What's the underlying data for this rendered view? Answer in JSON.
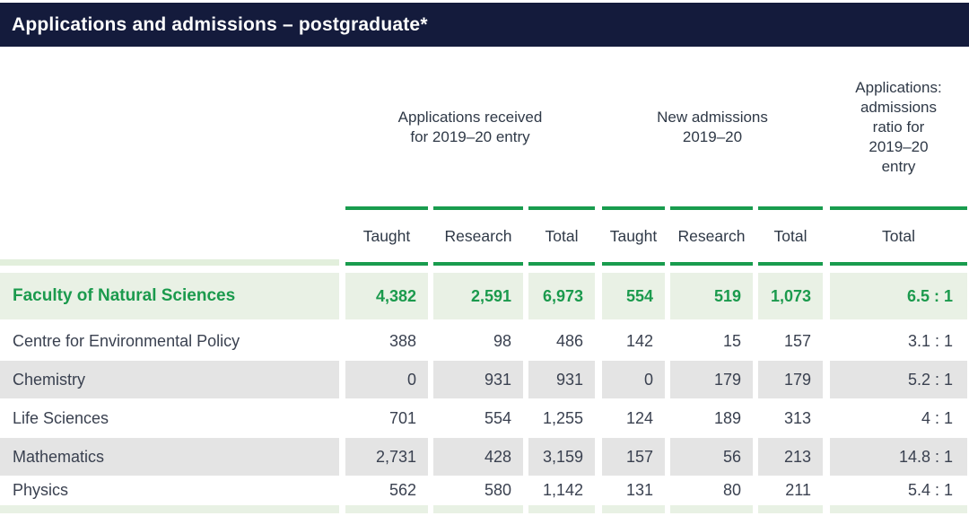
{
  "title": "Applications and admissions – postgraduate*",
  "table": {
    "group_headers": [
      "Applications received\nfor 2019–20 entry",
      "New admissions\n2019–20",
      "Applications:\nadmissions\nratio for\n2019–20\nentry"
    ],
    "column_headers": [
      "Taught",
      "Research",
      "Total",
      "Taught",
      "Research",
      "Total",
      "Total"
    ],
    "rows": [
      {
        "label": "Faculty of Natural Sciences",
        "style": "faculty",
        "shaded": false,
        "values": [
          "4,382",
          "2,591",
          "6,973",
          "554",
          "519",
          "1,073",
          "6.5 : 1"
        ]
      },
      {
        "label": "Centre for Environmental Policy",
        "style": "dept",
        "shaded": false,
        "values": [
          "388",
          "98",
          "486",
          "142",
          "15",
          "157",
          "3.1 : 1"
        ]
      },
      {
        "label": "Chemistry",
        "style": "dept",
        "shaded": true,
        "values": [
          "0",
          "931",
          "931",
          "0",
          "179",
          "179",
          "5.2 : 1"
        ]
      },
      {
        "label": "Life Sciences",
        "style": "dept",
        "shaded": false,
        "values": [
          "701",
          "554",
          "1,255",
          "124",
          "189",
          "313",
          "4 : 1"
        ]
      },
      {
        "label": "Mathematics",
        "style": "dept",
        "shaded": true,
        "values": [
          "2,731",
          "428",
          "3,159",
          "157",
          "56",
          "213",
          "14.8 : 1"
        ]
      },
      {
        "label": "Physics",
        "style": "dept",
        "shaded": false,
        "values": [
          "562",
          "580",
          "1,142",
          "131",
          "80",
          "211",
          "5.4 : 1"
        ]
      }
    ]
  },
  "colors": {
    "header_bar": "#141b3c",
    "accent_green": "#199c4e",
    "faculty_row_bg": "#e9f1e5",
    "shaded_row_bg": "#e4e4e4",
    "body_text": "#3a4150"
  }
}
